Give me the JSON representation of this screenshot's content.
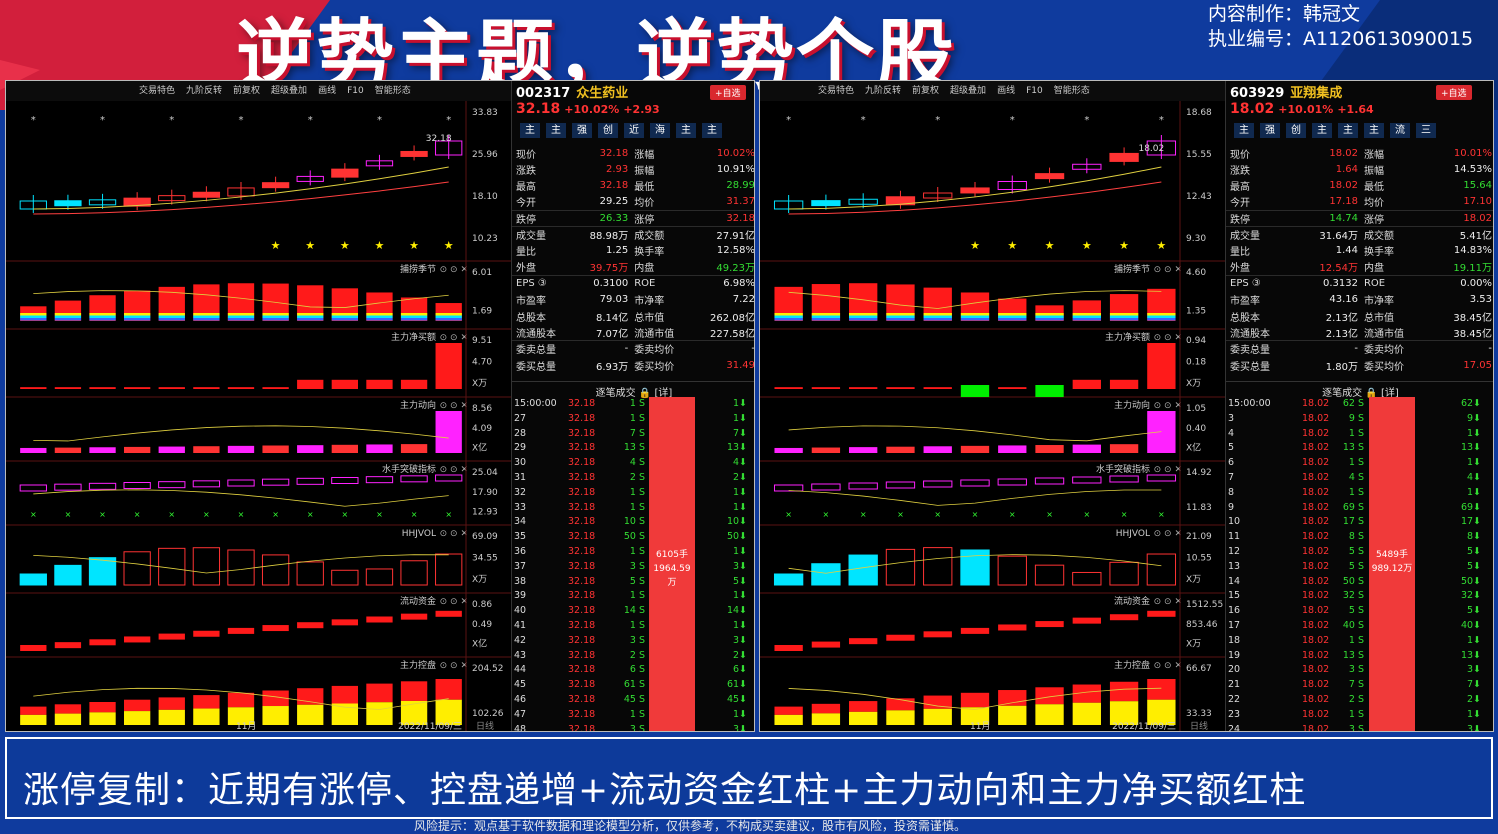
{
  "title": "逆势主题，逆势个股",
  "credit": {
    "line1": "内容制作：韩冠文",
    "line2": "执业编号：A1120613090015"
  },
  "footer": "涨停复制：近期有涨停、控盘递增+流动资金红柱+主力动向和主力净买额红柱",
  "risk": "风险提示：观点基于软件数据和理论模型分析，仅供参考，不构成买卖建议，股市有风险，投资需谨慎。",
  "colors": {
    "up": "#ff3333",
    "down": "#33dd33",
    "bg": "#0f3b9e",
    "accent": "#c8102e"
  },
  "toolbar": [
    "交易特色",
    "九阶反转",
    "前复权",
    "超级叠加",
    "画线",
    "F10",
    "智能形态"
  ],
  "panels": [
    {
      "code": "002317",
      "name": "众生药业",
      "price": "32.18",
      "pct": "+10.02%",
      "chg": "+2.93",
      "add": "+自选",
      "tags": [
        "主",
        "主",
        "强",
        "创",
        "近",
        "海",
        "主",
        "主"
      ],
      "quote": [
        [
          "现价",
          "32.18",
          "r",
          "涨幅",
          "10.02%",
          "r"
        ],
        [
          "涨跌",
          "2.93",
          "r",
          "振幅",
          "10.91%",
          "w"
        ],
        [
          "最高",
          "32.18",
          "r",
          "最低",
          "28.99",
          "g"
        ],
        [
          "今开",
          "29.25",
          "w",
          "均价",
          "31.37",
          "r"
        ],
        [
          "跌停",
          "26.33",
          "g",
          "涨停",
          "32.18",
          "r"
        ],
        [
          "成交量",
          "88.98万",
          "w",
          "成交额",
          "27.91亿",
          "w"
        ],
        [
          "量比",
          "1.25",
          "w",
          "换手率",
          "12.58%",
          "w"
        ],
        [
          "外盘",
          "39.75万",
          "r",
          "内盘",
          "49.23万",
          "g"
        ],
        [
          "EPS ③",
          "0.3100",
          "w",
          "ROE",
          "6.98%",
          "w"
        ],
        [
          "市盈率",
          "79.03",
          "w",
          "市净率",
          "7.22",
          "w"
        ],
        [
          "总股本",
          "8.14亿",
          "w",
          "总市值",
          "262.08亿",
          "w"
        ],
        [
          "流通股本",
          "7.07亿",
          "w",
          "流通市值",
          "227.58亿",
          "w"
        ],
        [
          "委卖总量",
          "-",
          "w",
          "委卖均价",
          "-",
          "w"
        ],
        [
          "委买总量",
          "6.93万",
          "w",
          "委买均价",
          "31.49",
          "r"
        ]
      ],
      "ticks_title": "逐笔成交",
      "detail": "[详]",
      "ticks": [
        [
          "15:00:00",
          "32.18",
          "1 S",
          "1"
        ],
        [
          "27",
          "32.18",
          "1 S",
          "1"
        ],
        [
          "28",
          "32.18",
          "7 S",
          "7"
        ],
        [
          "29",
          "32.18",
          "13 S",
          "13"
        ],
        [
          "30",
          "32.18",
          "4 S",
          "4"
        ],
        [
          "31",
          "32.18",
          "2 S",
          "2"
        ],
        [
          "32",
          "32.18",
          "1 S",
          "1"
        ],
        [
          "33",
          "32.18",
          "1 S",
          "1"
        ],
        [
          "34",
          "32.18",
          "10 S",
          "10"
        ],
        [
          "35",
          "32.18",
          "50 S",
          "50"
        ],
        [
          "36",
          "32.18",
          "1 S",
          "1"
        ],
        [
          "37",
          "32.18",
          "3 S",
          "3"
        ],
        [
          "38",
          "32.18",
          "5 S",
          "5"
        ],
        [
          "39",
          "32.18",
          "1 S",
          "1"
        ],
        [
          "40",
          "32.18",
          "14 S",
          "14"
        ],
        [
          "41",
          "32.18",
          "1 S",
          "1"
        ],
        [
          "42",
          "32.18",
          "3 S",
          "3"
        ],
        [
          "43",
          "32.18",
          "2 S",
          "2"
        ],
        [
          "44",
          "32.18",
          "6 S",
          "6"
        ],
        [
          "45",
          "32.18",
          "61 S",
          "61"
        ],
        [
          "46",
          "32.18",
          "45 S",
          "45"
        ],
        [
          "47",
          "32.18",
          "1 S",
          "1"
        ],
        [
          "48",
          "32.18",
          "3 S",
          "3"
        ]
      ],
      "bigbar": [
        "6105手",
        "1964.59万"
      ],
      "date": "2022/11/09/三",
      "month": "11月",
      "daily": "日线",
      "axis": [
        [
          "33.83",
          "25.96",
          "18.10",
          "10.23"
        ],
        [
          "6.01",
          "1.69"
        ],
        [
          "9.51",
          "4.70",
          "X万"
        ],
        [
          "8.56",
          "4.09",
          "X亿"
        ],
        [
          "25.04",
          "17.90",
          "12.93"
        ],
        [
          "69.09",
          "34.55",
          "X万"
        ],
        [
          "0.86",
          "0.49",
          "X亿"
        ],
        [
          "204.52",
          "102.26"
        ]
      ],
      "price_label": "32.18",
      "sub_titles": [
        "捕捞季节",
        "主力净买额",
        "主力动向",
        "水手突破指标",
        "HHJVOL",
        "流动资金",
        "主力控盘"
      ]
    },
    {
      "code": "603929",
      "name": "亚翔集成",
      "price": "18.02",
      "pct": "+10.01%",
      "chg": "+1.64",
      "add": "+自选",
      "tags": [
        "主",
        "强",
        "创",
        "主",
        "主",
        "主",
        "流",
        "三"
      ],
      "quote": [
        [
          "现价",
          "18.02",
          "r",
          "涨幅",
          "10.01%",
          "r"
        ],
        [
          "涨跌",
          "1.64",
          "r",
          "振幅",
          "14.53%",
          "w"
        ],
        [
          "最高",
          "18.02",
          "r",
          "最低",
          "15.64",
          "g"
        ],
        [
          "今开",
          "17.18",
          "r",
          "均价",
          "17.10",
          "r"
        ],
        [
          "跌停",
          "14.74",
          "g",
          "涨停",
          "18.02",
          "r"
        ],
        [
          "成交量",
          "31.64万",
          "w",
          "成交额",
          "5.41亿",
          "w"
        ],
        [
          "量比",
          "1.44",
          "w",
          "换手率",
          "14.83%",
          "w"
        ],
        [
          "外盘",
          "12.54万",
          "r",
          "内盘",
          "19.11万",
          "g"
        ],
        [
          "EPS ③",
          "0.3132",
          "w",
          "ROE",
          "0.00%",
          "w"
        ],
        [
          "市盈率",
          "43.16",
          "w",
          "市净率",
          "3.53",
          "w"
        ],
        [
          "总股本",
          "2.13亿",
          "w",
          "总市值",
          "38.45亿",
          "w"
        ],
        [
          "流通股本",
          "2.13亿",
          "w",
          "流通市值",
          "38.45亿",
          "w"
        ],
        [
          "委卖总量",
          "-",
          "w",
          "委卖均价",
          "-",
          "w"
        ],
        [
          "委买总量",
          "1.80万",
          "w",
          "委买均价",
          "17.05",
          "r"
        ]
      ],
      "ticks_title": "逐笔成交",
      "detail": "[详]",
      "ticks": [
        [
          "15:00:00",
          "18.02",
          "62 S",
          "62"
        ],
        [
          "3",
          "18.02",
          "9 S",
          "9"
        ],
        [
          "4",
          "18.02",
          "1 S",
          "1"
        ],
        [
          "5",
          "18.02",
          "13 S",
          "13"
        ],
        [
          "6",
          "18.02",
          "1 S",
          "1"
        ],
        [
          "7",
          "18.02",
          "4 S",
          "4"
        ],
        [
          "8",
          "18.02",
          "1 S",
          "1"
        ],
        [
          "9",
          "18.02",
          "69 S",
          "69"
        ],
        [
          "10",
          "18.02",
          "17 S",
          "17"
        ],
        [
          "11",
          "18.02",
          "8 S",
          "8"
        ],
        [
          "12",
          "18.02",
          "5 S",
          "5"
        ],
        [
          "13",
          "18.02",
          "5 S",
          "5"
        ],
        [
          "14",
          "18.02",
          "50 S",
          "50"
        ],
        [
          "15",
          "18.02",
          "32 S",
          "32"
        ],
        [
          "16",
          "18.02",
          "5 S",
          "5"
        ],
        [
          "17",
          "18.02",
          "40 S",
          "40"
        ],
        [
          "18",
          "18.02",
          "1 S",
          "1"
        ],
        [
          "19",
          "18.02",
          "13 S",
          "13"
        ],
        [
          "20",
          "18.02",
          "3 S",
          "3"
        ],
        [
          "21",
          "18.02",
          "7 S",
          "7"
        ],
        [
          "22",
          "18.02",
          "2 S",
          "2"
        ],
        [
          "23",
          "18.02",
          "1 S",
          "1"
        ],
        [
          "24",
          "18.02",
          "3 S",
          "3"
        ]
      ],
      "bigbar": [
        "5489手",
        "989.12万"
      ],
      "date": "2022/11/09/三",
      "month": "11月",
      "daily": "日线",
      "axis": [
        [
          "18.68",
          "15.55",
          "12.43",
          "9.30"
        ],
        [
          "4.60",
          "1.35"
        ],
        [
          "0.94",
          "0.18",
          "X万"
        ],
        [
          "1.05",
          "0.40",
          "X亿"
        ],
        [
          "14.92",
          "11.83"
        ],
        [
          "21.09",
          "10.55",
          "X万"
        ],
        [
          "1512.55",
          "853.46",
          "X万"
        ],
        [
          "66.67",
          "33.33"
        ]
      ],
      "price_label": "18.02",
      "sub_titles": [
        "捕捞季节",
        "主力净买额",
        "主力动向",
        "水手突破指标",
        "HHJVOL",
        "流动资金",
        "主力控盘"
      ]
    }
  ]
}
